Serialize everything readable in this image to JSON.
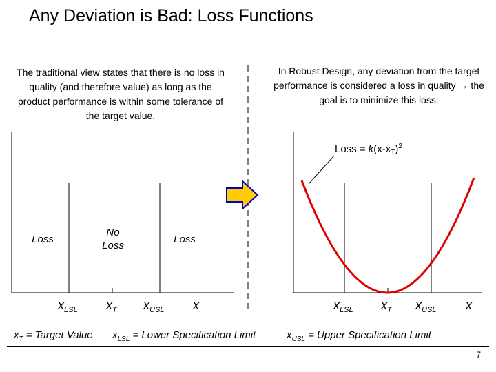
{
  "title": "Any Deviation is Bad: Loss Functions",
  "left_panel": {
    "description": "The traditional view states that there is no loss in quality (and therefore value) as long as the product performance is within some tolerance of the target value.",
    "loss_left": "Loss",
    "no_loss": "No Loss",
    "loss_right": "Loss",
    "axis": {
      "lsl_main": "x",
      "lsl_sub": "LSL",
      "t_main": "x",
      "t_sub": "T",
      "usl_main": "x",
      "usl_sub": "USL",
      "x": "x"
    }
  },
  "right_panel": {
    "description": "In Robust Design, any deviation from the target performance is considered a loss in quality → the goal is to minimize this loss.",
    "formula_prefix": "Loss = ",
    "formula_k": "k",
    "formula_mid": "(x-x",
    "formula_sub": "T",
    "formula_close": ")",
    "formula_exp": "2",
    "axis": {
      "lsl_main": "x",
      "lsl_sub": "LSL",
      "t_main": "x",
      "t_sub": "T",
      "usl_main": "x",
      "usl_sub": "USL",
      "x": "x"
    }
  },
  "legend": {
    "target_main": "x",
    "target_sub": "T",
    "target_text": " = Target Value",
    "lsl_main": "x",
    "lsl_sub": "LSL",
    "lsl_text": " = Lower Specification Limit",
    "usl_main": "x",
    "usl_sub": "USL",
    "usl_text": " = Upper Specification Limit"
  },
  "page_number": "7",
  "colors": {
    "curve": "#dd0000",
    "arrow_fill": "#ffcc00",
    "arrow_stroke": "#0000cc"
  }
}
